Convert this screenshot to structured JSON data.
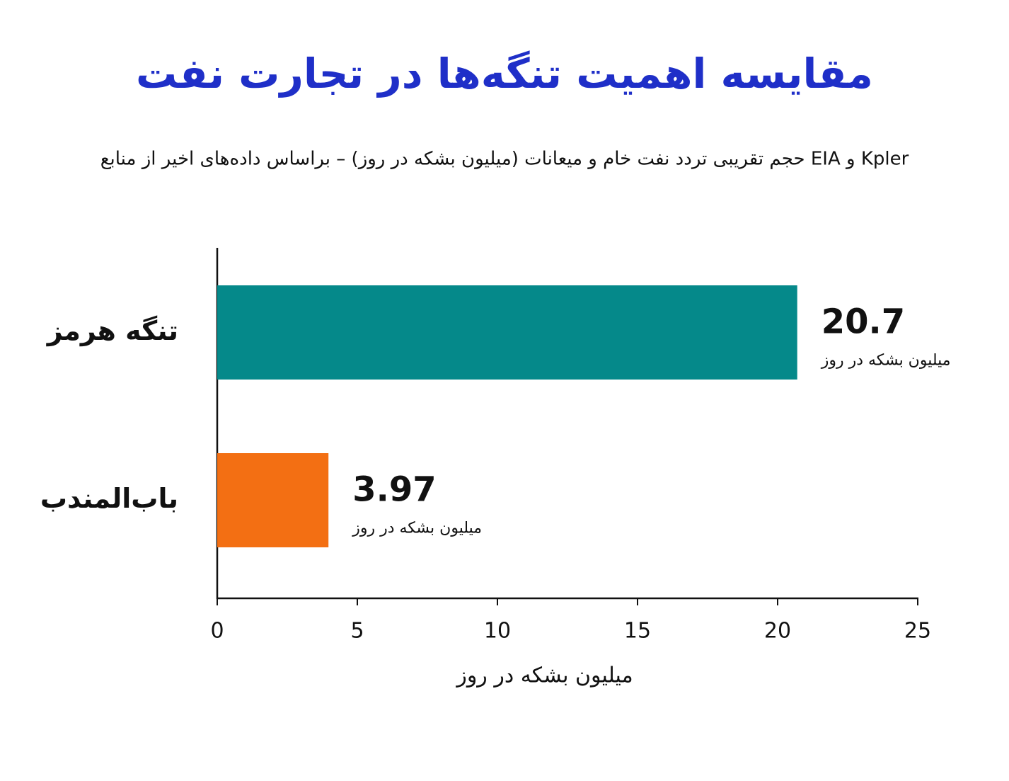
{
  "chart_data": {
    "type": "hbar",
    "title": "مقایسه اهمیت تنگه‌ها در تجارت نفت",
    "subtitle": "حجم تقریبی تردد نفت خام و میعانات (میلیون بشکه در روز) – براساس داده‌های اخیر از منابع EIA و Kpler",
    "categories": [
      "تنگه هرمز",
      "باب‌المندب"
    ],
    "values": [
      20.7,
      3.97
    ],
    "colors": [
      "#05898a",
      "#f36f13"
    ],
    "value_unit": "میلیون بشکه در روز",
    "xlabel": "میلیون بشکه در روز",
    "xlim": [
      0,
      25
    ],
    "xticks": [
      0,
      5,
      10,
      15,
      20,
      25
    ]
  }
}
